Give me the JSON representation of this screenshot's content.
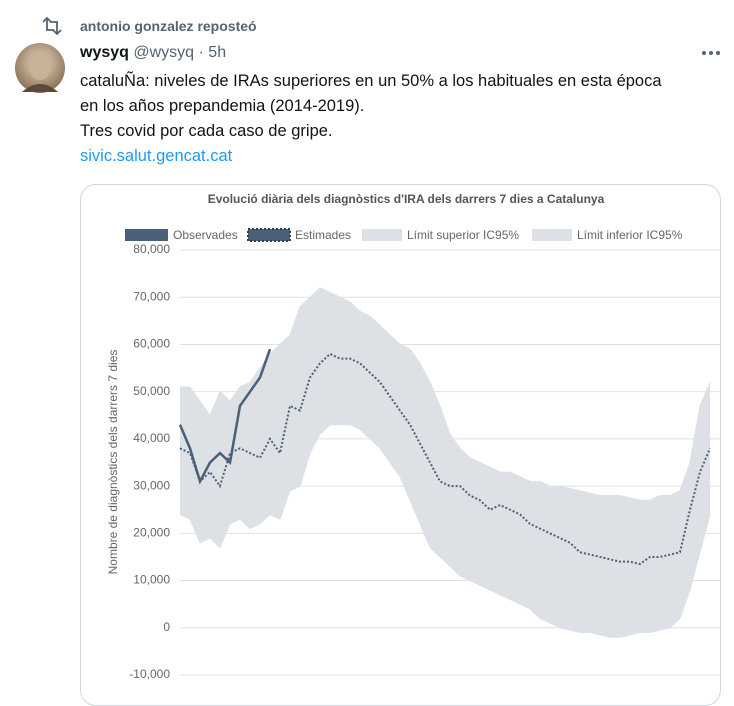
{
  "repost": "antonio gonzalez reposteó",
  "tweet": {
    "name": "wysyq",
    "handle": "@wysyq",
    "time": "5h",
    "text_lines": [
      "cataluÑa: niveles de IRAs superiores en un 50% a los habituales en esta época",
      "en los años prepandemia (2014-2019).",
      "Tres covid por cada caso de gripe."
    ],
    "link": "sivic.salut.gencat.cat"
  },
  "chart_data": {
    "type": "line",
    "title": "Evolució diària dels diagnòstics d'IRA dels darrers 7 dies a Catalunya",
    "y_label": "Nombre de diagnòstics dels darrers 7 dies",
    "categories": [
      null,
      null,
      null,
      null,
      null,
      null,
      null,
      null,
      null,
      null,
      null,
      null,
      null,
      null,
      null,
      null,
      null,
      null,
      null,
      null,
      null,
      null,
      null,
      null,
      null,
      null,
      null,
      null,
      null,
      null,
      null,
      null,
      null,
      null,
      null,
      null,
      null,
      null,
      null,
      null,
      null,
      null,
      null,
      null,
      null,
      null,
      null,
      null,
      null,
      null,
      null,
      null,
      null,
      null
    ],
    "ylim": [
      -10000,
      80000
    ],
    "yticks": [
      {
        "value": -10000,
        "label": "-10,000"
      },
      0,
      {
        "value": 10000,
        "label": "10,000"
      },
      {
        "value": 20000,
        "label": "20,000"
      },
      {
        "value": 30000,
        "label": "30,000"
      },
      {
        "value": 40000,
        "label": "40,000"
      },
      {
        "value": 50000,
        "label": "50,000"
      },
      {
        "value": 60000,
        "label": "60,000"
      },
      {
        "value": 70000,
        "label": "70,000"
      },
      {
        "value": 80000,
        "label": "80,000"
      }
    ],
    "grid": true,
    "series": [
      {
        "name": "Observades",
        "color": "#4a6078",
        "values": [
          43000,
          38000,
          31000,
          35000,
          37000,
          35000,
          47000,
          50000,
          53000,
          59000,
          null,
          null,
          null,
          null,
          null,
          null,
          null,
          null,
          null,
          null,
          null,
          null,
          null,
          null,
          null,
          null,
          null,
          null,
          null,
          null,
          null,
          null,
          null,
          null,
          null,
          null,
          null,
          null,
          null,
          null,
          null,
          null,
          null,
          null,
          null,
          null,
          null,
          null,
          null,
          null,
          null,
          null,
          null,
          null
        ]
      },
      {
        "name": "Estimades",
        "color": "#4a6078",
        "values": [
          38000,
          37000,
          31000,
          33000,
          30000,
          37000,
          38000,
          37000,
          36000,
          40000,
          37000,
          47000,
          46000,
          53000,
          56000,
          58000,
          57000,
          57000,
          56000,
          54000,
          52000,
          49000,
          46000,
          43000,
          39000,
          35000,
          31000,
          30000,
          30000,
          28000,
          27000,
          25000,
          26000,
          25000,
          24000,
          22000,
          21000,
          20000,
          19000,
          18000,
          16000,
          15500,
          15000,
          14500,
          14000,
          14000,
          13500,
          15000,
          15000,
          15500,
          16000,
          25000,
          33000,
          38000
        ]
      },
      {
        "name": "Límit superior IC95%",
        "color": "#dde1e5",
        "values": [
          51000,
          51000,
          48000,
          45000,
          50000,
          48000,
          51000,
          52000,
          55000,
          58000,
          60000,
          62000,
          68000,
          70000,
          72000,
          71000,
          70000,
          69000,
          67000,
          66000,
          64000,
          62000,
          60000,
          59000,
          56000,
          52000,
          47000,
          41000,
          38000,
          36000,
          35000,
          34000,
          33000,
          33000,
          32000,
          31000,
          31000,
          30000,
          30000,
          29500,
          29000,
          28500,
          28000,
          28000,
          28000,
          27500,
          27000,
          27000,
          28000,
          28000,
          29000,
          35000,
          47000,
          52000
        ]
      },
      {
        "name": "Límit inferior IC95%",
        "color": "#dde1e5",
        "values": [
          24000,
          23000,
          18000,
          19000,
          17000,
          22000,
          23000,
          21000,
          22000,
          24000,
          23000,
          29000,
          30000,
          37000,
          41000,
          43000,
          43000,
          43000,
          42000,
          40000,
          38000,
          35000,
          32000,
          27000,
          22000,
          17000,
          15000,
          13000,
          11000,
          10000,
          9000,
          8000,
          7000,
          6000,
          5000,
          4000,
          2000,
          1000,
          0,
          -500,
          -1000,
          -1000,
          -1500,
          -2000,
          -2000,
          -1500,
          -1000,
          -1000,
          -500,
          0,
          2000,
          8000,
          16000,
          24000
        ]
      }
    ]
  }
}
